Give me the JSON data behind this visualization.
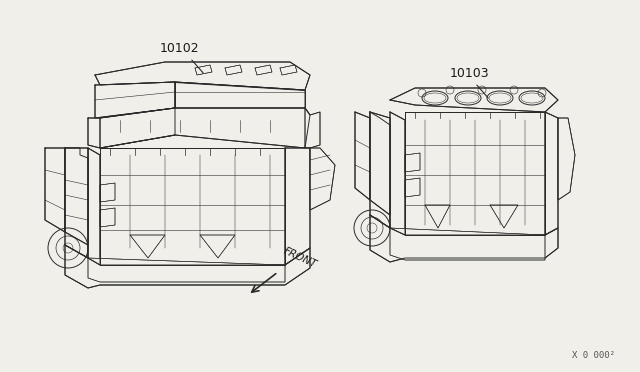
{
  "background_color": "#f0efea",
  "line_color": "#2a2a2a",
  "label_color": "#1a1a1a",
  "part_label_1": "10102",
  "part_label_2": "10103",
  "front_label": "FRONT",
  "watermark": "X 0 000²",
  "fig_width": 6.4,
  "fig_height": 3.72,
  "dpi": 100
}
